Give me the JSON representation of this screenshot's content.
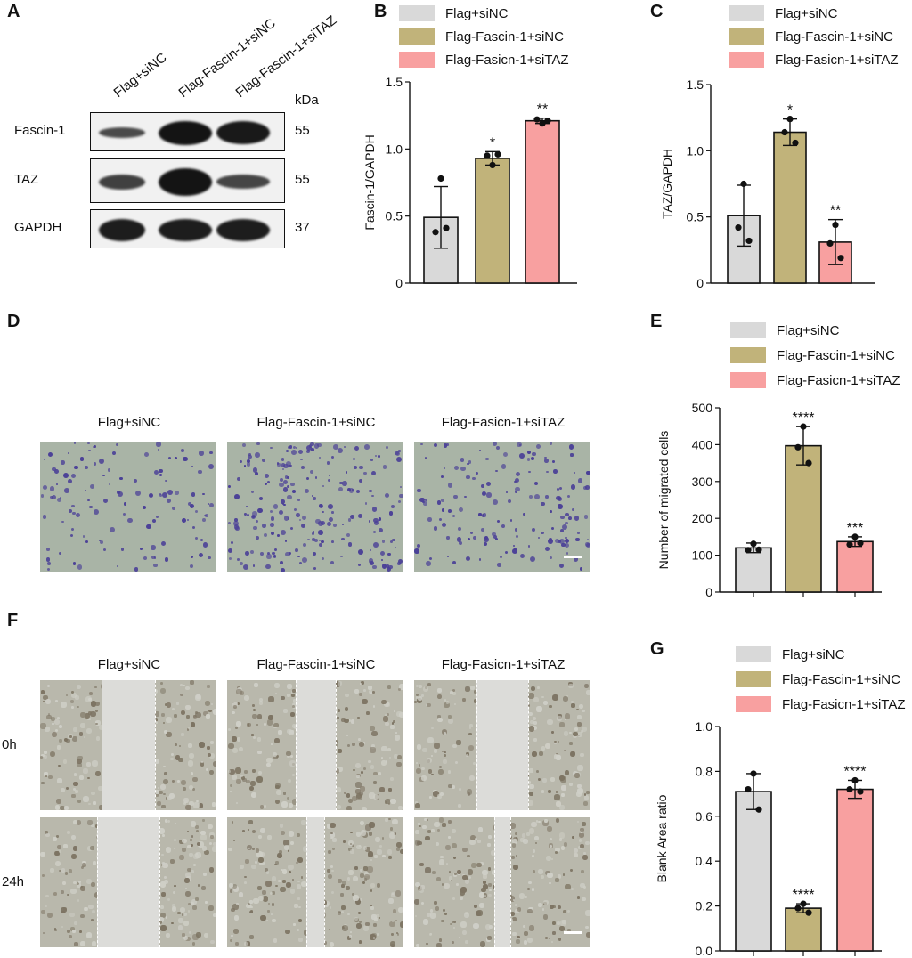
{
  "panel_letters": {
    "A": "A",
    "B": "B",
    "C": "C",
    "D": "D",
    "E": "E",
    "F": "F",
    "G": "G"
  },
  "colors": {
    "flag_sinc": "#d9d9d9",
    "fascin_sinc": "#c1b37a",
    "fasicn_sitaz": "#f8a0a0",
    "transwell_bg": "#a9b4a6",
    "transwell_cell": "#4a3f97",
    "scratch_bg": "#b9b8ac",
    "scratch_gap": "#dcdcd9"
  },
  "western_blot": {
    "lanes": [
      "Flag+siNC",
      "Flag-Fascin-1+siNC",
      "Flag-Fascin-1+siTAZ"
    ],
    "kda_label": "kDa",
    "rows": [
      {
        "protein": "Fascin-1",
        "kda": "55",
        "intensity": [
          0.45,
          1.0,
          0.95
        ]
      },
      {
        "protein": "TAZ",
        "kda": "55",
        "intensity": [
          0.55,
          1.0,
          0.5
        ]
      },
      {
        "protein": "GAPDH",
        "kda": "37",
        "intensity": [
          0.9,
          0.9,
          0.9
        ]
      }
    ]
  },
  "chart_data": [
    {
      "panel": "B",
      "type": "bar",
      "categories": [
        "Flag+siNC",
        "Flag-Fascin-1+siNC",
        "Flag-Fasicn-1+siTAZ"
      ],
      "legend": [
        "Flag+siNC",
        "Flag-Fascin-1+siNC",
        "Flag-Fasicn-1+siTAZ"
      ],
      "values": [
        0.49,
        0.93,
        1.21
      ],
      "errors": [
        0.23,
        0.05,
        0.02
      ],
      "points": [
        [
          0.78,
          0.38,
          0.41
        ],
        [
          0.88,
          0.95,
          0.96
        ],
        [
          1.19,
          1.22,
          1.21
        ]
      ],
      "significance": [
        "",
        "*",
        "**"
      ],
      "ylabel": "Fascin-1/GAPDH",
      "ylim": [
        0,
        1.5
      ],
      "yticks": [
        "0",
        "0.5",
        "1.0",
        "1.5"
      ],
      "ytick_values": [
        0,
        0.5,
        1.0,
        1.5
      ]
    },
    {
      "panel": "C",
      "type": "bar",
      "categories": [
        "Flag+siNC",
        "Flag-Fascin-1+siNC",
        "Flag-Fasicn-1+siTAZ"
      ],
      "legend": [
        "Flag+siNC",
        "Flag-Fascin-1+siNC",
        "Flag-Fasicn-1+siTAZ"
      ],
      "values": [
        0.51,
        1.14,
        0.31
      ],
      "errors": [
        0.23,
        0.1,
        0.17
      ],
      "points": [
        [
          0.75,
          0.42,
          0.32
        ],
        [
          1.24,
          1.14,
          1.06
        ],
        [
          0.44,
          0.3,
          0.19
        ]
      ],
      "significance": [
        "",
        "*",
        "**"
      ],
      "ylabel": "TAZ/GAPDH",
      "ylim": [
        0,
        1.5
      ],
      "yticks": [
        "0",
        "0.5",
        "1.0",
        "1.5"
      ],
      "ytick_values": [
        0,
        0.5,
        1.0,
        1.5
      ]
    },
    {
      "panel": "E",
      "type": "bar",
      "categories": [
        "Flag+siNC",
        "Flag-Fascin-1+siNC",
        "Flag-Fasicn-1+siTAZ"
      ],
      "legend": [
        "Flag+siNC",
        "Flag-Fascin-1+siNC",
        "Flag-Fasicn-1+siTAZ"
      ],
      "values": [
        120,
        397,
        137
      ],
      "errors": [
        13,
        52,
        13
      ],
      "points": [
        [
          131,
          114,
          115
        ],
        [
          449,
          393,
          350
        ],
        [
          150,
          129,
          133
        ]
      ],
      "significance": [
        "",
        "****",
        "***"
      ],
      "ylabel": "Number of migrated cells",
      "ylim": [
        0,
        500
      ],
      "yticks": [
        "0",
        "100",
        "200",
        "300",
        "400",
        "500"
      ],
      "ytick_values": [
        0,
        100,
        200,
        300,
        400,
        500
      ]
    },
    {
      "panel": "G",
      "type": "bar",
      "categories": [
        "Flag+siNC",
        "Flag-Fascin-1+siNC",
        "Flag-Fasicn-1+siTAZ"
      ],
      "legend": [
        "Flag+siNC",
        "Flag-Fascin-1+siNC",
        "Flag-Fasicn-1+siTAZ"
      ],
      "values": [
        0.71,
        0.19,
        0.72
      ],
      "errors": [
        0.08,
        0.02,
        0.04
      ],
      "points": [
        [
          0.79,
          0.72,
          0.63
        ],
        [
          0.21,
          0.19,
          0.17
        ],
        [
          0.76,
          0.72,
          0.71
        ]
      ],
      "significance": [
        "",
        "****",
        "****"
      ],
      "ylabel": "Blank Area ratio",
      "ylim": [
        0,
        1.0
      ],
      "yticks": [
        "0.0",
        "0.2",
        "0.4",
        "0.6",
        "0.8",
        "1.0"
      ],
      "ytick_values": [
        0,
        0.2,
        0.4,
        0.6,
        0.8,
        1.0
      ]
    }
  ],
  "transwell": {
    "titles": [
      "Flag+siNC",
      "Flag-Fascin-1+siNC",
      "Flag-Fasicn-1+siTAZ"
    ],
    "cell_density": [
      0.55,
      1.0,
      0.7
    ]
  },
  "scratch": {
    "titles": [
      "Flag+siNC",
      "Flag-Fascin-1+siNC",
      "Flag-Fasicn-1+siTAZ"
    ],
    "time_labels": [
      "0h",
      "24h"
    ]
  }
}
